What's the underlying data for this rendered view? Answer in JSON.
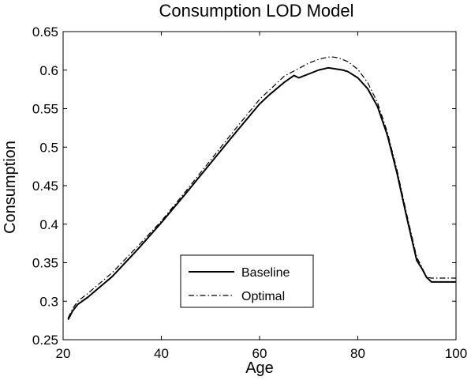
{
  "chart_data": {
    "type": "line",
    "title": "Consumption LOD Model",
    "xlabel": "Age",
    "ylabel": "Consumption",
    "xlim": [
      20,
      100
    ],
    "ylim": [
      0.25,
      0.65
    ],
    "xticks": [
      "20",
      "40",
      "60",
      "80",
      "100"
    ],
    "yticks": [
      "0.25",
      "0.3",
      "0.35",
      "0.4",
      "0.45",
      "0.5",
      "0.55",
      "0.6",
      "0.65"
    ],
    "grid": false,
    "legend_position": "lower-center",
    "series": [
      {
        "name": "Baseline",
        "style": "solid",
        "color": "#000000",
        "x": [
          21,
          22,
          23,
          25,
          30,
          35,
          40,
          45,
          50,
          55,
          60,
          62,
          65,
          67,
          68,
          70,
          72,
          74,
          75,
          77,
          78,
          80,
          82,
          84,
          86,
          88,
          90,
          92,
          93,
          94,
          95,
          100
        ],
        "y": [
          0.276,
          0.288,
          0.296,
          0.305,
          0.332,
          0.366,
          0.402,
          0.44,
          0.479,
          0.518,
          0.556,
          0.568,
          0.584,
          0.593,
          0.59,
          0.595,
          0.6,
          0.603,
          0.602,
          0.6,
          0.598,
          0.59,
          0.576,
          0.553,
          0.516,
          0.466,
          0.408,
          0.353,
          0.343,
          0.331,
          0.325,
          0.325
        ]
      },
      {
        "name": "Optimal",
        "style": "dashdot",
        "color": "#000000",
        "x": [
          21,
          22,
          23,
          25,
          30,
          35,
          40,
          45,
          50,
          55,
          60,
          65,
          70,
          72,
          74,
          75,
          76,
          78,
          80,
          82,
          84,
          86,
          88,
          90,
          92,
          93,
          94,
          95,
          100
        ],
        "y": [
          0.278,
          0.291,
          0.3,
          0.31,
          0.337,
          0.37,
          0.404,
          0.443,
          0.483,
          0.523,
          0.562,
          0.592,
          0.609,
          0.614,
          0.617,
          0.617,
          0.616,
          0.611,
          0.601,
          0.584,
          0.558,
          0.52,
          0.47,
          0.412,
          0.357,
          0.345,
          0.331,
          0.33,
          0.33
        ]
      }
    ]
  }
}
